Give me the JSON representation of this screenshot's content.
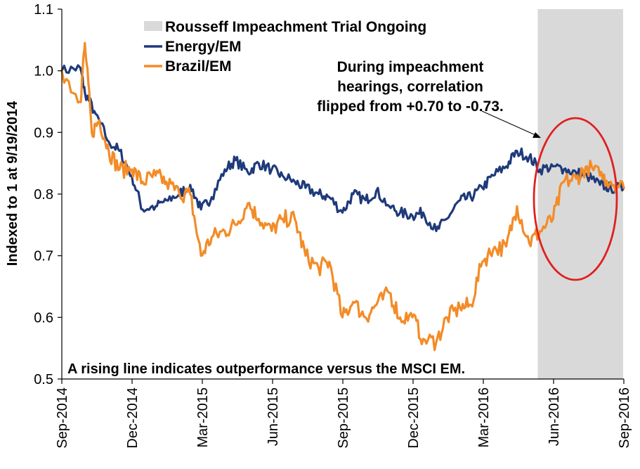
{
  "chart_data": {
    "type": "line",
    "title": "",
    "xlabel": "",
    "ylabel": "Indexed to 1 at 9/19/2014",
    "ylim": [
      0.5,
      1.1
    ],
    "y_ticks": [
      "0.5",
      "0.6",
      "0.7",
      "0.8",
      "0.9",
      "1.0",
      "1.1"
    ],
    "x_ticks": [
      "Sep-2014",
      "Dec-2014",
      "Mar-2015",
      "Jun-2015",
      "Sep-2015",
      "Dec-2015",
      "Mar-2016",
      "Jun-2016",
      "Sep-2016"
    ],
    "x_range": [
      "2014-09",
      "2016-09"
    ],
    "grid": false,
    "legend_position": "top-left",
    "shaded_region": {
      "label": "Rousseff Impeachment Trial Ongoing",
      "start": "2016-05-12",
      "end": "2016-08-31",
      "color": "#d9d9d9"
    },
    "series": [
      {
        "name": "Energy/EM",
        "color": "#1f3a7a",
        "x": [
          "2014-09",
          "2014-09-25",
          "2014-10",
          "2014-10-15",
          "2014-11",
          "2014-11-15",
          "2014-12",
          "2014-12-15",
          "2015-01",
          "2015-01-15",
          "2015-02",
          "2015-02-15",
          "2015-03",
          "2015-03-15",
          "2015-04",
          "2015-04-15",
          "2015-05",
          "2015-05-15",
          "2015-06",
          "2015-06-15",
          "2015-07",
          "2015-07-15",
          "2015-08",
          "2015-08-15",
          "2015-09",
          "2015-09-15",
          "2015-10",
          "2015-10-15",
          "2015-11",
          "2015-11-15",
          "2015-12",
          "2015-12-15",
          "2016-01",
          "2016-01-15",
          "2016-02",
          "2016-02-15",
          "2016-03",
          "2016-03-15",
          "2016-04",
          "2016-04-15",
          "2016-05",
          "2016-05-15",
          "2016-06",
          "2016-06-15",
          "2016-07",
          "2016-07-15",
          "2016-08",
          "2016-08-15",
          "2016-09"
        ],
        "values": [
          1.0,
          1.005,
          0.965,
          0.93,
          0.885,
          0.87,
          0.83,
          0.775,
          0.78,
          0.79,
          0.8,
          0.815,
          0.775,
          0.795,
          0.84,
          0.855,
          0.835,
          0.85,
          0.84,
          0.83,
          0.82,
          0.81,
          0.8,
          0.795,
          0.77,
          0.8,
          0.79,
          0.805,
          0.78,
          0.77,
          0.765,
          0.77,
          0.74,
          0.76,
          0.79,
          0.795,
          0.81,
          0.83,
          0.845,
          0.87,
          0.86,
          0.84,
          0.845,
          0.84,
          0.835,
          0.83,
          0.815,
          0.81,
          0.81
        ]
      },
      {
        "name": "Brazil/EM",
        "color": "#f28c28",
        "x": [
          "2014-09",
          "2014-09-25",
          "2014-10",
          "2014-10-10",
          "2014-10-20",
          "2014-11",
          "2014-11-15",
          "2014-12",
          "2014-12-15",
          "2015-01",
          "2015-01-15",
          "2015-02",
          "2015-02-15",
          "2015-03",
          "2015-03-15",
          "2015-04",
          "2015-04-15",
          "2015-05",
          "2015-05-15",
          "2015-06",
          "2015-06-15",
          "2015-07",
          "2015-07-15",
          "2015-08",
          "2015-08-15",
          "2015-09",
          "2015-09-15",
          "2015-10",
          "2015-10-15",
          "2015-11",
          "2015-11-15",
          "2015-12",
          "2015-12-15",
          "2016-01",
          "2016-01-15",
          "2016-02",
          "2016-02-15",
          "2016-03",
          "2016-03-15",
          "2016-04",
          "2016-04-15",
          "2016-05",
          "2016-05-15",
          "2016-06",
          "2016-06-15",
          "2016-07",
          "2016-07-15",
          "2016-08",
          "2016-08-15",
          "2016-09"
        ],
        "values": [
          1.0,
          0.95,
          1.045,
          0.9,
          0.92,
          0.87,
          0.84,
          0.84,
          0.82,
          0.83,
          0.82,
          0.8,
          0.8,
          0.7,
          0.73,
          0.74,
          0.75,
          0.785,
          0.76,
          0.74,
          0.76,
          0.76,
          0.7,
          0.68,
          0.69,
          0.6,
          0.625,
          0.6,
          0.62,
          0.64,
          0.6,
          0.6,
          0.565,
          0.56,
          0.6,
          0.615,
          0.62,
          0.69,
          0.71,
          0.715,
          0.78,
          0.72,
          0.74,
          0.76,
          0.82,
          0.825,
          0.845,
          0.83,
          0.82,
          0.81
        ]
      }
    ],
    "annotations": [
      {
        "id": "correlation-note",
        "lines": [
          "During impeachment",
          "hearings, correlation",
          "flipped from +0.70 to -0.73."
        ]
      },
      {
        "id": "footer-note",
        "lines": [
          "A rising line indicates outperformance versus the MSCI EM."
        ]
      }
    ],
    "highlight_ellipse_color": "#e02020"
  }
}
